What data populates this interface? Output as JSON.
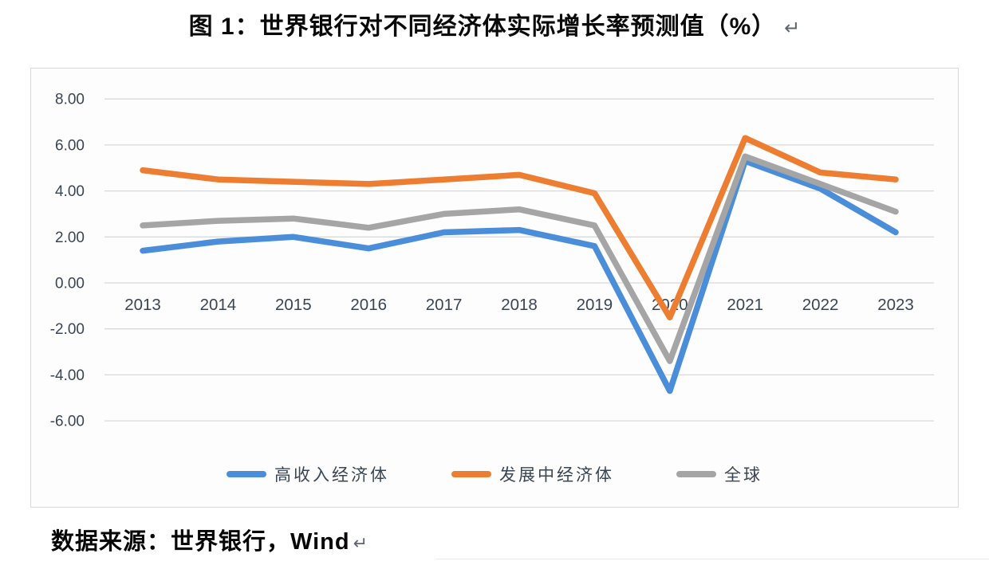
{
  "page": {
    "title": "图 1：世界银行对不同经济体实际增长率预测值（%）",
    "title_return_mark": "↵",
    "source": "数据来源：世界银行，Wind",
    "source_return_mark": "↵"
  },
  "chart_data": {
    "type": "line",
    "title": "图 1：世界银行对不同经济体实际增长率预测值（%）",
    "x": [
      "2013",
      "2014",
      "2015",
      "2016",
      "2017",
      "2018",
      "2019",
      "2020",
      "2021",
      "2022",
      "2023"
    ],
    "series": [
      {
        "key": "high-income-economies",
        "name": "高收入经济体",
        "color": "#4A8ED9",
        "values": [
          1.4,
          1.8,
          2.0,
          1.5,
          2.2,
          2.3,
          1.6,
          -4.7,
          5.3,
          4.1,
          2.2
        ]
      },
      {
        "key": "developing-economies",
        "name": "发展中经济体",
        "color": "#ED7D31",
        "values": [
          4.9,
          4.5,
          4.4,
          4.3,
          4.5,
          4.7,
          3.9,
          -1.5,
          6.3,
          4.8,
          4.5
        ]
      },
      {
        "key": "global",
        "name": "全球",
        "color": "#A5A5A5",
        "values": [
          2.5,
          2.7,
          2.8,
          2.4,
          3.0,
          3.2,
          2.5,
          -3.4,
          5.5,
          4.3,
          3.1
        ]
      }
    ],
    "ylim": [
      -6,
      8
    ],
    "ytick_step": 2,
    "ytick_labels": [
      "8.00",
      "6.00",
      "4.00",
      "2.00",
      "0.00",
      "-2.00",
      "-4.00",
      "-6.00"
    ],
    "grid": true,
    "legend_position": "bottom",
    "grid_color": "#D9D9D9",
    "axis_label_color": "#3A4553",
    "line_width": 7.5
  }
}
